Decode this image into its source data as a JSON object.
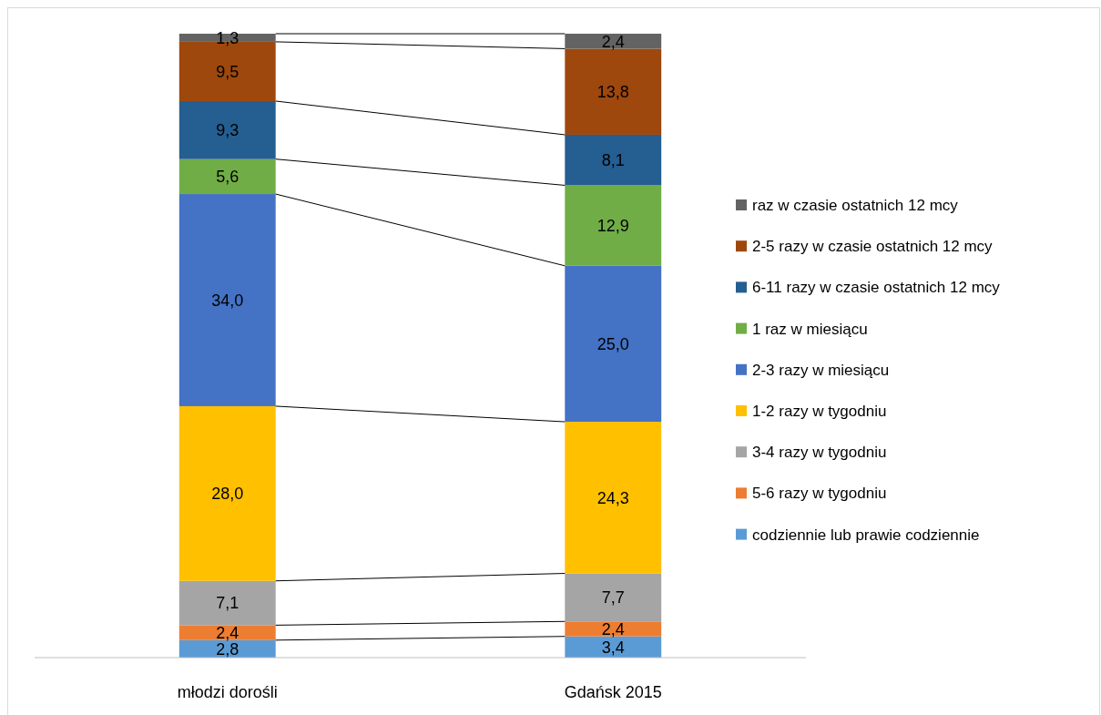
{
  "chart_data": {
    "type": "bar",
    "stacked": true,
    "legend": "right",
    "categories": [
      "młodzi dorośli",
      "Gdańsk 2015"
    ],
    "series": [
      {
        "name": "codziennie lub prawie codziennie",
        "color": "#5b9bd5",
        "values": [
          2.8,
          3.4
        ],
        "value_labels": [
          "2,8",
          "3,4"
        ]
      },
      {
        "name": "5-6 razy w tygodniu",
        "color": "#ed7d31",
        "values": [
          2.4,
          2.4
        ],
        "value_labels": [
          "2,4",
          "2,4"
        ]
      },
      {
        "name": "3-4 razy w tygodniu",
        "color": "#a5a5a5",
        "values": [
          7.1,
          7.7
        ],
        "value_labels": [
          "7,1",
          "7,7"
        ]
      },
      {
        "name": "1-2 razy w tygodniu",
        "color": "#ffc000",
        "values": [
          28.0,
          24.3
        ],
        "value_labels": [
          "28,0",
          "24,3"
        ]
      },
      {
        "name": "2-3 razy w miesiącu",
        "color": "#4472c4",
        "values": [
          34.0,
          25.0
        ],
        "value_labels": [
          "34,0",
          "25,0"
        ]
      },
      {
        "name": "1 raz w miesiącu",
        "color": "#70ad47",
        "values": [
          5.6,
          12.9
        ],
        "value_labels": [
          "5,6",
          "12,9"
        ]
      },
      {
        "name": "6-11 razy w czasie ostatnich 12 mcy",
        "color": "#255e91",
        "values": [
          9.3,
          8.1
        ],
        "value_labels": [
          "9,3",
          "8,1"
        ]
      },
      {
        "name": "2-5 razy w czasie ostatnich 12 mcy",
        "color": "#9e480e",
        "values": [
          9.5,
          13.8
        ],
        "value_labels": [
          "9,5",
          "13,8"
        ]
      },
      {
        "name": "raz w czasie ostatnich 12 mcy",
        "color": "#636363",
        "values": [
          1.3,
          2.4
        ],
        "value_labels": [
          "1,3",
          "2,4"
        ]
      }
    ]
  }
}
